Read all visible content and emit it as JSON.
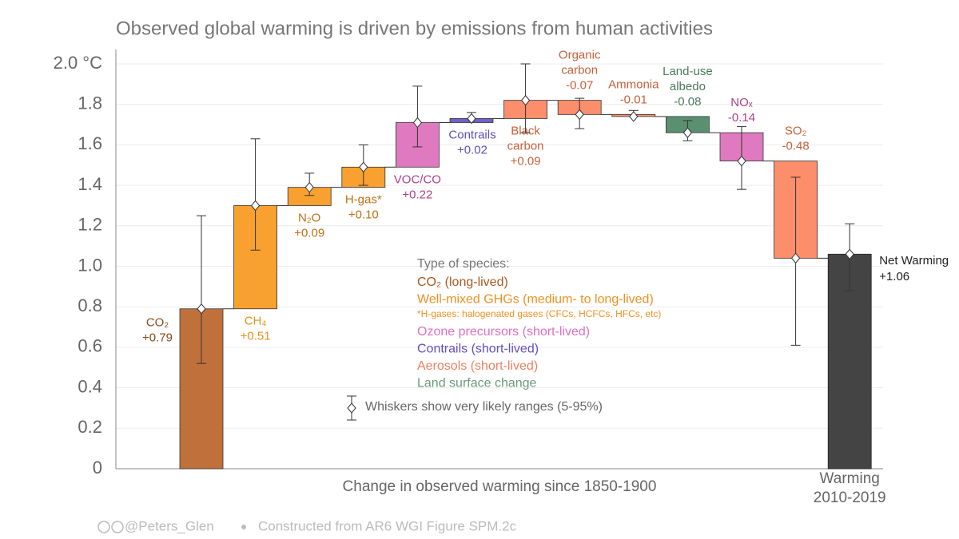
{
  "chart_data": {
    "type": "waterfall",
    "title": "Observed global warming is driven by emissions from human activities",
    "x_label": "Change in observed warming since 1850-1900",
    "categories": [
      [
        "CO₂"
      ],
      [
        "CH₄"
      ],
      [
        "N₂O"
      ],
      [
        "H-gas*"
      ],
      [
        "VOC/CO"
      ],
      [
        "Contrails"
      ],
      [
        "Black",
        "carbon"
      ],
      [
        "Organic",
        "carbon"
      ],
      [
        "Ammonia"
      ],
      [
        "Land-use",
        "albedo"
      ],
      [
        "NOₓ"
      ],
      [
        "SO₂"
      ]
    ],
    "values": [
      0.79,
      0.51,
      0.09,
      0.1,
      0.22,
      0.02,
      0.09,
      -0.07,
      -0.01,
      -0.08,
      -0.14,
      -0.48
    ],
    "value_labels": [
      "+0.79",
      "+0.51",
      "+0.09",
      "+0.10",
      "+0.22",
      "+0.02",
      "+0.09",
      "-0.07",
      "-0.01",
      "-0.08",
      "-0.14",
      "-0.48"
    ],
    "colors": [
      "#c0703a",
      "#f8a030",
      "#f8a030",
      "#f8a030",
      "#e07ac0",
      "#7060c8",
      "#fc8e6c",
      "#fc8e6c",
      "#fc8e6c",
      "#5a9070",
      "#e07ac0",
      "#fc8e6c"
    ],
    "label_colors": [
      "#8a4a1a",
      "#e8901a",
      "#c07010",
      "#c07010",
      "#b0408a",
      "#6050b8",
      "#c8603a",
      "#c8603a",
      "#c8603a",
      "#4a7a5a",
      "#b0408a",
      "#c8603a"
    ],
    "whisker_low": [
      0.52,
      1.08,
      1.35,
      1.4,
      1.59,
      1.73,
      1.66,
      1.68,
      1.74,
      1.62,
      1.38,
      0.61
    ],
    "whisker_high": [
      1.25,
      1.63,
      1.46,
      1.6,
      1.89,
      1.76,
      2.0,
      1.83,
      1.77,
      1.72,
      1.69,
      1.44
    ],
    "total": {
      "label": "Net Warming",
      "value": 1.06,
      "value_label": "+1.06",
      "color": "#444444",
      "low": 0.88,
      "high": 1.21,
      "x_label": [
        "Warming",
        "2010-2019"
      ]
    },
    "ylim": [
      0,
      2.0
    ],
    "yticks": [
      0,
      0.2,
      0.4,
      0.6,
      0.8,
      {
        "value": 1,
        "label": "1.0"
      },
      1.2,
      1.4,
      1.6,
      1.8,
      {
        "value": 2,
        "label": "2.0 °C"
      }
    ],
    "grid": true,
    "legend": {
      "title": "Type of species:",
      "entries": [
        {
          "name": "CO₂ (long-lived)",
          "color": "#a85a20"
        },
        {
          "name": "Well-mixed GHGs (medium- to long-lived)",
          "color": "#f09020"
        },
        {
          "name": "*H-gases: halogenated gases (CFCs, HCFCs, HFCs, etc)",
          "color": "#f09020",
          "small": true
        },
        {
          "name": "Ozone precursors (short-lived)",
          "color": "#e070c0"
        },
        {
          "name": "Contrails (short-lived)",
          "color": "#6050c0"
        },
        {
          "name": "Aerosols (short-lived)",
          "color": "#f08060"
        },
        {
          "name": "Land surface change",
          "color": "#6a9a7a"
        }
      ]
    },
    "whisker_note": "Whiskers show very likely ranges (5-95%)"
  },
  "footer": {
    "handle": "@Peters_Glen",
    "source": "Constructed from AR6 WGI Figure SPM.2c"
  }
}
